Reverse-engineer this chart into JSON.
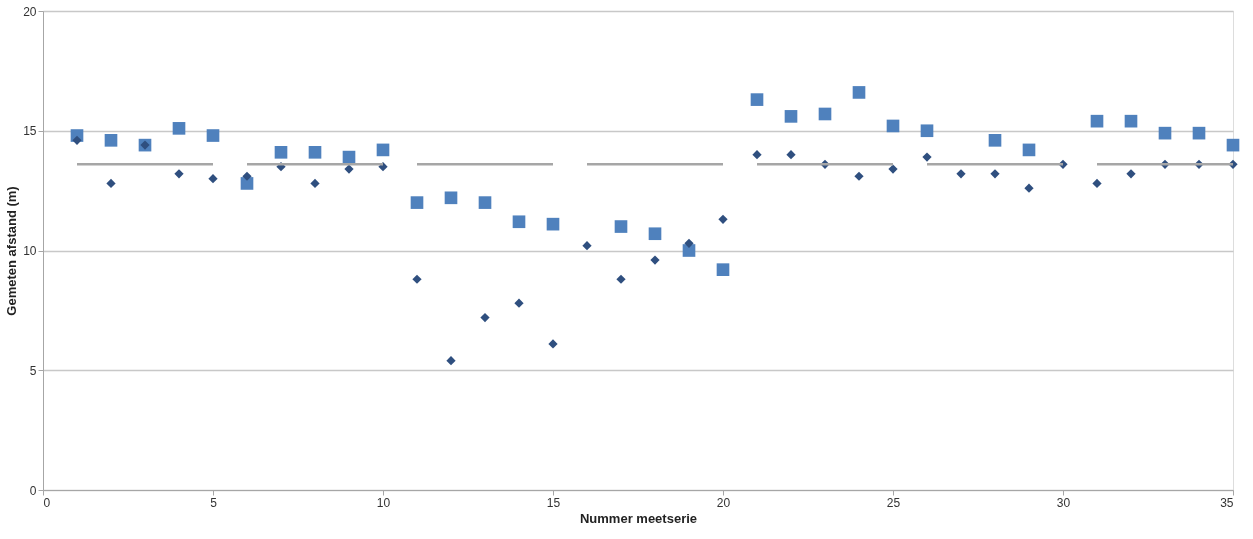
{
  "chart_data": {
    "type": "scatter",
    "xlabel": "Nummer meetserie",
    "ylabel": "Gemeten afstand (m)",
    "xlim": [
      0,
      35
    ],
    "xticks": [
      0,
      5,
      10,
      15,
      20,
      25,
      30,
      35
    ],
    "ylim": [
      0,
      20
    ],
    "yticks": [
      0,
      5,
      10,
      15,
      20
    ],
    "grid": "y",
    "x": [
      1,
      2,
      3,
      4,
      5,
      6,
      7,
      8,
      9,
      10,
      11,
      12,
      13,
      14,
      15,
      16,
      17,
      18,
      19,
      20,
      21,
      22,
      23,
      24,
      25,
      26,
      27,
      28,
      29,
      30,
      31,
      32,
      33,
      34,
      35
    ],
    "series": [
      {
        "marker": "square",
        "color": "#4f81bd",
        "values": [
          14.8,
          14.6,
          14.4,
          15.1,
          14.8,
          12.8,
          14.1,
          14.1,
          13.9,
          14.2,
          12.0,
          12.2,
          12.0,
          11.2,
          11.1,
          null,
          11.0,
          10.7,
          10.0,
          9.2,
          16.3,
          15.6,
          15.7,
          16.6,
          15.2,
          15.0,
          null,
          14.6,
          14.2,
          null,
          15.4,
          15.4,
          14.9,
          14.9,
          14.4
        ]
      },
      {
        "marker": "diamond",
        "color": "#2f4f7f",
        "values": [
          14.6,
          12.8,
          14.4,
          13.2,
          13.0,
          13.1,
          13.5,
          12.8,
          13.4,
          13.5,
          8.8,
          5.4,
          7.2,
          7.8,
          6.1,
          10.2,
          8.8,
          9.6,
          10.3,
          11.3,
          14.0,
          14.0,
          13.6,
          13.1,
          13.4,
          13.9,
          13.2,
          13.2,
          12.6,
          13.6,
          12.8,
          13.2,
          13.6,
          13.6,
          13.6
        ]
      },
      {
        "type": "line",
        "color": "#a6a6a6",
        "x": [
          1,
          5
        ],
        "values": [
          13.6,
          13.6
        ]
      },
      {
        "type": "line",
        "color": "#a6a6a6",
        "x": [
          6,
          10
        ],
        "values": [
          13.6,
          13.6
        ]
      },
      {
        "type": "line",
        "color": "#a6a6a6",
        "x": [
          11,
          15
        ],
        "values": [
          13.6,
          13.6
        ]
      },
      {
        "type": "line",
        "color": "#a6a6a6",
        "x": [
          16,
          20
        ],
        "values": [
          13.6,
          13.6
        ]
      },
      {
        "type": "line",
        "color": "#a6a6a6",
        "x": [
          21,
          25
        ],
        "values": [
          13.6,
          13.6
        ]
      },
      {
        "type": "line",
        "color": "#a6a6a6",
        "x": [
          26,
          30
        ],
        "values": [
          13.6,
          13.6
        ]
      },
      {
        "type": "line",
        "color": "#a6a6a6",
        "x": [
          31,
          35
        ],
        "values": [
          13.6,
          13.6
        ]
      }
    ]
  }
}
